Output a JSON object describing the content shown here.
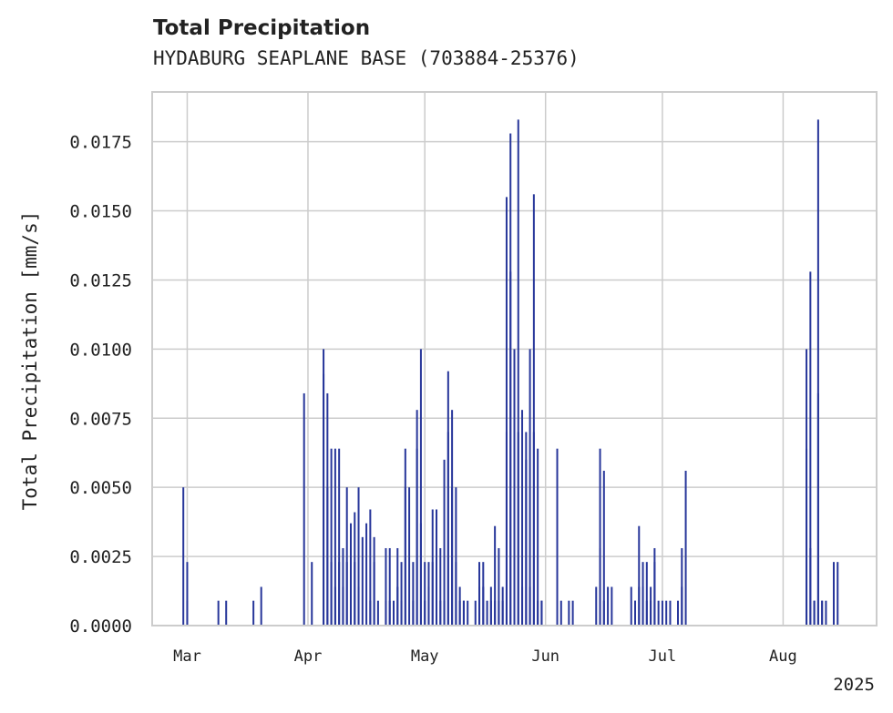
{
  "chart_data": {
    "type": "bar",
    "title": "Total Precipitation",
    "subtitle": "HYDABURG SEAPLANE BASE (703884-25376)",
    "ylabel": "Total Precipitation [mm/s]",
    "xlabel": "",
    "ylim": [
      0,
      0.0193
    ],
    "xlim": [
      "2025-02-20",
      "2025-08-25"
    ],
    "yticks": [
      "0.0000",
      "0.0025",
      "0.0050",
      "0.0075",
      "0.0100",
      "0.0125",
      "0.0150",
      "0.0175"
    ],
    "xticks": [
      {
        "date": "2025-03-01",
        "label": "Mar"
      },
      {
        "date": "2025-04-01",
        "label": "Apr"
      },
      {
        "date": "2025-05-01",
        "label": "May"
      },
      {
        "date": "2025-06-01",
        "label": "Jun"
      },
      {
        "date": "2025-07-01",
        "label": "Jul"
      },
      {
        "date": "2025-08-01",
        "label": "Aug"
      }
    ],
    "year_label": "2025",
    "grid": true,
    "bar_color": "#27369a",
    "series": [
      {
        "x": [
          "2025-02-28",
          "2025-03-01",
          "2025-03-01",
          "2025-03-09",
          "2025-03-11",
          "2025-03-18",
          "2025-03-20",
          "2025-03-31",
          "2025-04-02",
          "2025-04-05",
          "2025-04-05",
          "2025-04-06",
          "2025-04-06",
          "2025-04-07",
          "2025-04-07",
          "2025-04-08",
          "2025-04-08",
          "2025-04-09",
          "2025-04-09",
          "2025-04-10",
          "2025-04-10",
          "2025-04-11",
          "2025-04-11",
          "2025-04-12",
          "2025-04-12",
          "2025-04-13",
          "2025-04-13",
          "2025-04-14",
          "2025-04-14",
          "2025-04-15",
          "2025-04-16",
          "2025-04-17",
          "2025-04-17",
          "2025-04-18",
          "2025-04-18",
          "2025-04-19",
          "2025-04-21",
          "2025-04-21",
          "2025-04-22",
          "2025-04-22",
          "2025-04-23",
          "2025-04-24",
          "2025-04-24",
          "2025-04-25",
          "2025-04-25",
          "2025-04-26",
          "2025-04-26",
          "2025-04-27",
          "2025-04-28",
          "2025-04-28",
          "2025-04-29",
          "2025-04-29",
          "2025-04-30",
          "2025-04-30",
          "2025-05-01",
          "2025-05-01",
          "2025-05-02",
          "2025-05-02",
          "2025-05-03",
          "2025-05-03",
          "2025-05-04",
          "2025-05-04",
          "2025-05-05",
          "2025-05-05",
          "2025-05-06",
          "2025-05-06",
          "2025-05-07",
          "2025-05-07",
          "2025-05-08",
          "2025-05-08",
          "2025-05-09",
          "2025-05-09",
          "2025-05-10",
          "2025-05-10",
          "2025-05-11",
          "2025-05-11",
          "2025-05-12",
          "2025-05-14",
          "2025-05-15",
          "2025-05-15",
          "2025-05-16",
          "2025-05-16",
          "2025-05-17",
          "2025-05-18",
          "2025-05-18",
          "2025-05-19",
          "2025-05-19",
          "2025-05-20",
          "2025-05-20",
          "2025-05-21",
          "2025-05-21",
          "2025-05-22",
          "2025-05-22",
          "2025-05-23",
          "2025-05-23",
          "2025-05-24",
          "2025-05-24",
          "2025-05-25",
          "2025-05-25",
          "2025-05-26",
          "2025-05-26",
          "2025-05-27",
          "2025-05-27",
          "2025-05-28",
          "2025-05-28",
          "2025-05-29",
          "2025-05-29",
          "2025-05-30",
          "2025-05-30",
          "2025-05-31",
          "2025-05-31",
          "2025-06-04",
          "2025-06-05",
          "2025-06-07",
          "2025-06-08",
          "2025-06-14",
          "2025-06-15",
          "2025-06-15",
          "2025-06-16",
          "2025-06-16",
          "2025-06-17",
          "2025-06-18",
          "2025-06-23",
          "2025-06-24",
          "2025-06-24",
          "2025-06-25",
          "2025-06-25",
          "2025-06-26",
          "2025-06-26",
          "2025-06-27",
          "2025-06-27",
          "2025-06-28",
          "2025-06-28",
          "2025-06-29",
          "2025-06-29",
          "2025-06-30",
          "2025-07-01",
          "2025-07-02",
          "2025-07-03",
          "2025-07-05",
          "2025-07-06",
          "2025-07-06",
          "2025-07-07",
          "2025-08-07",
          "2025-08-07",
          "2025-08-08",
          "2025-08-08",
          "2025-08-09",
          "2025-08-09",
          "2025-08-10",
          "2025-08-10",
          "2025-08-11",
          "2025-08-11",
          "2025-08-12",
          "2025-08-14",
          "2025-08-15"
        ],
        "values": [
          0.005,
          0.0023,
          0.0009,
          0.0009,
          0.0009,
          0.0009,
          0.0014,
          0.0084,
          0.0023,
          0.01,
          0.0091,
          0.0084,
          0.005,
          0.0023,
          0.0064,
          0.0014,
          0.0064,
          0.0023,
          0.0064,
          0.0014,
          0.0028,
          0.0023,
          0.005,
          0.0028,
          0.0037,
          0.0023,
          0.0041,
          0.005,
          0.0014,
          0.0032,
          0.0037,
          0.0009,
          0.0042,
          0.0032,
          0.0023,
          0.0009,
          0.0009,
          0.0028,
          0.0009,
          0.0028,
          0.0009,
          0.0028,
          0.0014,
          0.0009,
          0.0023,
          0.005,
          0.0064,
          0.005,
          0.0009,
          0.0023,
          0.0078,
          0.0064,
          0.01,
          0.0037,
          0.0023,
          0.0009,
          0.0014,
          0.0023,
          0.0042,
          0.0023,
          0.0009,
          0.0042,
          0.0009,
          0.0028,
          0.0009,
          0.006,
          0.0092,
          0.007,
          0.005,
          0.0078,
          0.005,
          0.0023,
          0.0009,
          0.0014,
          0.0009,
          0.0009,
          0.0009,
          0.0009,
          0.0014,
          0.0023,
          0.0023,
          0.0014,
          0.0009,
          0.0014,
          0.0009,
          0.0036,
          0.0009,
          0.0028,
          0.0009,
          0.0009,
          0.0014,
          0.0155,
          0.007,
          0.0178,
          0.0128,
          0.01,
          0.0009,
          0.007,
          0.0183,
          0.0014,
          0.0078,
          0.006,
          0.007,
          0.01,
          0.0014,
          0.0156,
          0.007,
          0.0064,
          0.0009,
          0.0009,
          0.0009,
          0.0064,
          0.0009,
          0.0009,
          0.0009,
          0.0014,
          0.0028,
          0.0064,
          0.0009,
          0.0056,
          0.0014,
          0.0014,
          0.0014,
          0.0009,
          0.0009,
          0.0014,
          0.0036,
          0.0023,
          0.0014,
          0.0009,
          0.0023,
          0.0009,
          0.0014,
          0.0028,
          0.0023,
          0.0009,
          0.0009,
          0.0009,
          0.0009,
          0.0009,
          0.0014,
          0.0028,
          0.0056,
          0.0064,
          0.01,
          0.0128,
          0.0028,
          0.0009,
          0.0009,
          0.0084,
          0.0183,
          0.0009,
          0.0009,
          0.0009,
          0.0023,
          0.0023
        ]
      }
    ]
  }
}
